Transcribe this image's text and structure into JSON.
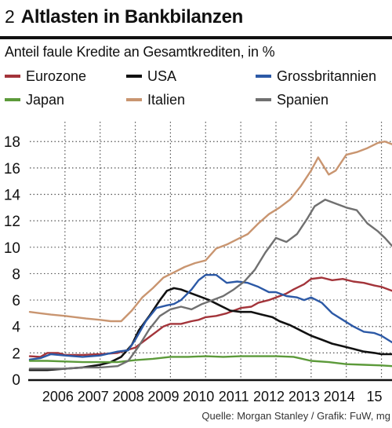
{
  "header": {
    "number": "2",
    "title": "Altlasten in Bankbilanzen"
  },
  "source": "Quelle: Morgan Stanley / Grafik: FuW, mg",
  "chart_data": {
    "type": "line",
    "title": "Altlasten in Bankbilanzen",
    "subtitle": "Anteil faule Kredite an Gesamtkrediten, in %",
    "xlabel": "",
    "ylabel": "",
    "x_tick_labels": [
      "2006",
      "2007",
      "2008",
      "2009",
      "2010",
      "2011",
      "2012",
      "2013",
      "2014",
      "15"
    ],
    "y_ticks": [
      0,
      2,
      4,
      6,
      8,
      10,
      12,
      14,
      16,
      18
    ],
    "ylim": [
      0,
      19.5
    ],
    "xlim": [
      2005.0,
      2015.3
    ],
    "grid": "dotted, horizontal and vertical",
    "legend_position": "top, three columns",
    "series": [
      {
        "name": "Eurozone",
        "color": "#a3343a",
        "points": [
          [
            2005.0,
            1.75
          ],
          [
            2005.3,
            1.7
          ],
          [
            2005.5,
            2.0
          ],
          [
            2005.8,
            2.0
          ],
          [
            2006.0,
            1.85
          ],
          [
            2006.5,
            1.85
          ],
          [
            2007.0,
            1.9
          ],
          [
            2007.5,
            2.0
          ],
          [
            2008.0,
            2.4
          ],
          [
            2008.3,
            3.0
          ],
          [
            2008.6,
            3.6
          ],
          [
            2008.8,
            4.0
          ],
          [
            2009.0,
            4.2
          ],
          [
            2009.3,
            4.2
          ],
          [
            2009.6,
            4.4
          ],
          [
            2009.8,
            4.5
          ],
          [
            2010.0,
            4.7
          ],
          [
            2010.3,
            4.8
          ],
          [
            2010.6,
            5.0
          ],
          [
            2010.8,
            5.2
          ],
          [
            2011.0,
            5.4
          ],
          [
            2011.3,
            5.5
          ],
          [
            2011.5,
            5.8
          ],
          [
            2011.8,
            6.0
          ],
          [
            2012.0,
            6.2
          ],
          [
            2012.3,
            6.5
          ],
          [
            2012.5,
            6.8
          ],
          [
            2012.8,
            7.2
          ],
          [
            2013.0,
            7.6
          ],
          [
            2013.3,
            7.7
          ],
          [
            2013.6,
            7.5
          ],
          [
            2013.9,
            7.6
          ],
          [
            2014.2,
            7.4
          ],
          [
            2014.5,
            7.3
          ],
          [
            2014.8,
            7.1
          ],
          [
            2015.0,
            7.0
          ],
          [
            2015.3,
            6.7
          ]
        ]
      },
      {
        "name": "USA",
        "color": "#111111",
        "points": [
          [
            2005.0,
            0.7
          ],
          [
            2005.5,
            0.7
          ],
          [
            2006.0,
            0.8
          ],
          [
            2006.5,
            0.9
          ],
          [
            2007.0,
            1.1
          ],
          [
            2007.3,
            1.3
          ],
          [
            2007.6,
            1.7
          ],
          [
            2007.9,
            2.6
          ],
          [
            2008.1,
            3.7
          ],
          [
            2008.4,
            4.8
          ],
          [
            2008.7,
            6.0
          ],
          [
            2008.9,
            6.7
          ],
          [
            2009.1,
            6.9
          ],
          [
            2009.3,
            6.8
          ],
          [
            2009.6,
            6.5
          ],
          [
            2009.9,
            6.2
          ],
          [
            2010.1,
            6.0
          ],
          [
            2010.4,
            5.6
          ],
          [
            2010.7,
            5.2
          ],
          [
            2011.0,
            5.1
          ],
          [
            2011.3,
            5.1
          ],
          [
            2011.6,
            4.9
          ],
          [
            2011.9,
            4.7
          ],
          [
            2012.1,
            4.4
          ],
          [
            2012.4,
            4.1
          ],
          [
            2012.7,
            3.7
          ],
          [
            2013.0,
            3.3
          ],
          [
            2013.3,
            3.0
          ],
          [
            2013.6,
            2.7
          ],
          [
            2013.9,
            2.5
          ],
          [
            2014.2,
            2.3
          ],
          [
            2014.5,
            2.1
          ],
          [
            2014.8,
            2.0
          ],
          [
            2015.0,
            1.9
          ],
          [
            2015.3,
            1.9
          ]
        ]
      },
      {
        "name": "Grossbritannien",
        "color": "#2c59a6",
        "points": [
          [
            2005.0,
            1.5
          ],
          [
            2005.3,
            1.6
          ],
          [
            2005.6,
            1.9
          ],
          [
            2006.0,
            1.8
          ],
          [
            2006.5,
            1.7
          ],
          [
            2007.0,
            1.8
          ],
          [
            2007.5,
            2.1
          ],
          [
            2007.8,
            2.2
          ],
          [
            2008.0,
            3.0
          ],
          [
            2008.3,
            4.4
          ],
          [
            2008.6,
            5.4
          ],
          [
            2008.9,
            5.6
          ],
          [
            2009.1,
            5.7
          ],
          [
            2009.3,
            6.0
          ],
          [
            2009.6,
            6.8
          ],
          [
            2009.8,
            7.5
          ],
          [
            2010.0,
            7.9
          ],
          [
            2010.3,
            7.9
          ],
          [
            2010.6,
            7.3
          ],
          [
            2010.9,
            7.4
          ],
          [
            2011.2,
            7.3
          ],
          [
            2011.5,
            7.0
          ],
          [
            2011.8,
            6.6
          ],
          [
            2012.0,
            6.6
          ],
          [
            2012.3,
            6.3
          ],
          [
            2012.6,
            6.2
          ],
          [
            2012.8,
            6.0
          ],
          [
            2013.0,
            6.2
          ],
          [
            2013.3,
            5.8
          ],
          [
            2013.6,
            5.0
          ],
          [
            2013.9,
            4.5
          ],
          [
            2014.2,
            4.0
          ],
          [
            2014.5,
            3.6
          ],
          [
            2014.8,
            3.5
          ],
          [
            2015.0,
            3.3
          ],
          [
            2015.3,
            2.8
          ]
        ]
      },
      {
        "name": "Japan",
        "color": "#5c9a3a",
        "points": [
          [
            2005.0,
            1.4
          ],
          [
            2005.5,
            1.4
          ],
          [
            2006.0,
            1.35
          ],
          [
            2006.5,
            1.3
          ],
          [
            2007.0,
            1.3
          ],
          [
            2007.5,
            1.3
          ],
          [
            2008.0,
            1.45
          ],
          [
            2008.5,
            1.55
          ],
          [
            2009.0,
            1.7
          ],
          [
            2009.5,
            1.7
          ],
          [
            2010.0,
            1.75
          ],
          [
            2010.5,
            1.7
          ],
          [
            2011.0,
            1.75
          ],
          [
            2011.5,
            1.75
          ],
          [
            2012.0,
            1.75
          ],
          [
            2012.5,
            1.7
          ],
          [
            2013.0,
            1.4
          ],
          [
            2013.5,
            1.3
          ],
          [
            2014.0,
            1.15
          ],
          [
            2014.5,
            1.1
          ],
          [
            2015.0,
            1.05
          ],
          [
            2015.3,
            1.0
          ]
        ]
      },
      {
        "name": "Italien",
        "color": "#c99570",
        "points": [
          [
            2005.0,
            5.1
          ],
          [
            2005.3,
            5.0
          ],
          [
            2005.6,
            4.9
          ],
          [
            2006.0,
            4.8
          ],
          [
            2006.3,
            4.7
          ],
          [
            2006.6,
            4.6
          ],
          [
            2007.0,
            4.5
          ],
          [
            2007.3,
            4.4
          ],
          [
            2007.6,
            4.4
          ],
          [
            2007.9,
            5.2
          ],
          [
            2008.2,
            6.2
          ],
          [
            2008.5,
            6.9
          ],
          [
            2008.8,
            7.7
          ],
          [
            2009.1,
            8.1
          ],
          [
            2009.4,
            8.5
          ],
          [
            2009.7,
            8.8
          ],
          [
            2010.0,
            9.0
          ],
          [
            2010.3,
            9.9
          ],
          [
            2010.6,
            10.2
          ],
          [
            2010.9,
            10.6
          ],
          [
            2011.2,
            11.0
          ],
          [
            2011.5,
            11.8
          ],
          [
            2011.8,
            12.5
          ],
          [
            2012.1,
            13.0
          ],
          [
            2012.4,
            13.6
          ],
          [
            2012.7,
            14.6
          ],
          [
            2013.0,
            15.8
          ],
          [
            2013.2,
            16.8
          ],
          [
            2013.5,
            15.5
          ],
          [
            2013.7,
            15.8
          ],
          [
            2014.0,
            17.0
          ],
          [
            2014.3,
            17.2
          ],
          [
            2014.6,
            17.5
          ],
          [
            2014.9,
            17.9
          ],
          [
            2015.1,
            18.0
          ],
          [
            2015.3,
            17.8
          ]
        ]
      },
      {
        "name": "Spanien",
        "color": "#707070",
        "points": [
          [
            2005.0,
            0.8
          ],
          [
            2005.5,
            0.8
          ],
          [
            2006.0,
            0.8
          ],
          [
            2006.5,
            0.9
          ],
          [
            2007.0,
            0.9
          ],
          [
            2007.5,
            1.0
          ],
          [
            2007.8,
            1.4
          ],
          [
            2008.1,
            2.5
          ],
          [
            2008.4,
            3.8
          ],
          [
            2008.7,
            4.8
          ],
          [
            2009.0,
            5.3
          ],
          [
            2009.3,
            5.5
          ],
          [
            2009.6,
            5.3
          ],
          [
            2009.9,
            5.7
          ],
          [
            2010.2,
            6.0
          ],
          [
            2010.5,
            6.3
          ],
          [
            2010.8,
            6.8
          ],
          [
            2011.1,
            7.4
          ],
          [
            2011.4,
            8.3
          ],
          [
            2011.7,
            9.6
          ],
          [
            2012.0,
            10.7
          ],
          [
            2012.3,
            10.4
          ],
          [
            2012.6,
            11.0
          ],
          [
            2012.9,
            12.2
          ],
          [
            2013.1,
            13.1
          ],
          [
            2013.4,
            13.6
          ],
          [
            2013.7,
            13.3
          ],
          [
            2014.0,
            13.0
          ],
          [
            2014.3,
            12.8
          ],
          [
            2014.6,
            11.8
          ],
          [
            2014.9,
            11.2
          ],
          [
            2015.1,
            10.7
          ],
          [
            2015.3,
            10.1
          ]
        ]
      }
    ]
  }
}
